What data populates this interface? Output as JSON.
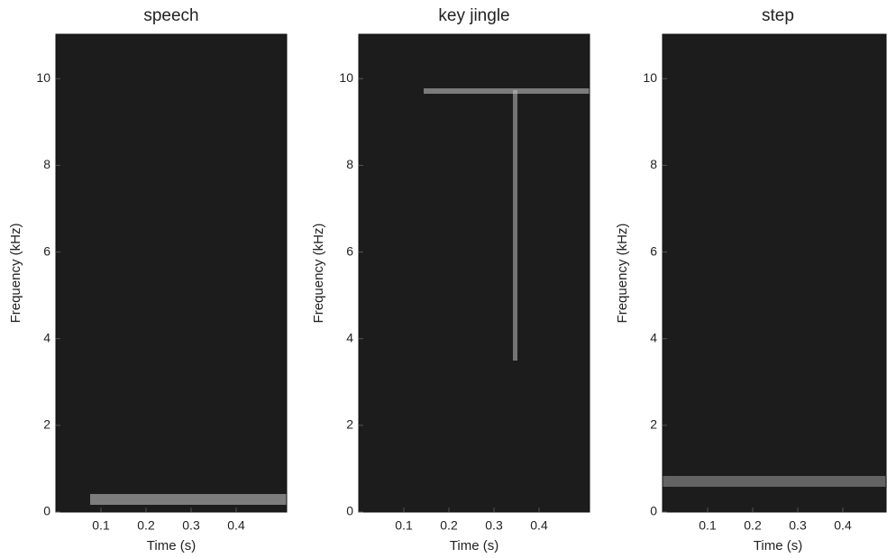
{
  "chart_data": [
    {
      "type": "spectrogram",
      "title": "speech",
      "x_label": "Time (s)",
      "y_label": "Frequency (kHz)",
      "xlim": [
        0,
        0.512
      ],
      "ylim": [
        0,
        11.025
      ],
      "xticks": [
        0.1,
        0.2,
        0.3,
        0.4
      ],
      "yticks": [
        0,
        2,
        4,
        6,
        8,
        10
      ]
    },
    {
      "type": "spectrogram",
      "title": "key jingle",
      "x_label": "Time (s)",
      "y_label": "Frequency (kHz)",
      "xlim": [
        0,
        0.512
      ],
      "ylim": [
        0,
        11.025
      ],
      "xticks": [
        0.1,
        0.2,
        0.3,
        0.4
      ],
      "yticks": [
        0,
        2,
        4,
        6,
        8,
        10
      ]
    },
    {
      "type": "spectrogram",
      "title": "step",
      "x_label": "Time (s)",
      "y_label": "Frequency (kHz)",
      "xlim": [
        0,
        0.512
      ],
      "ylim": [
        0,
        11.025
      ],
      "xticks": [
        0.1,
        0.2,
        0.3,
        0.4
      ],
      "yticks": [
        0,
        2,
        4,
        6,
        8,
        10
      ]
    }
  ]
}
